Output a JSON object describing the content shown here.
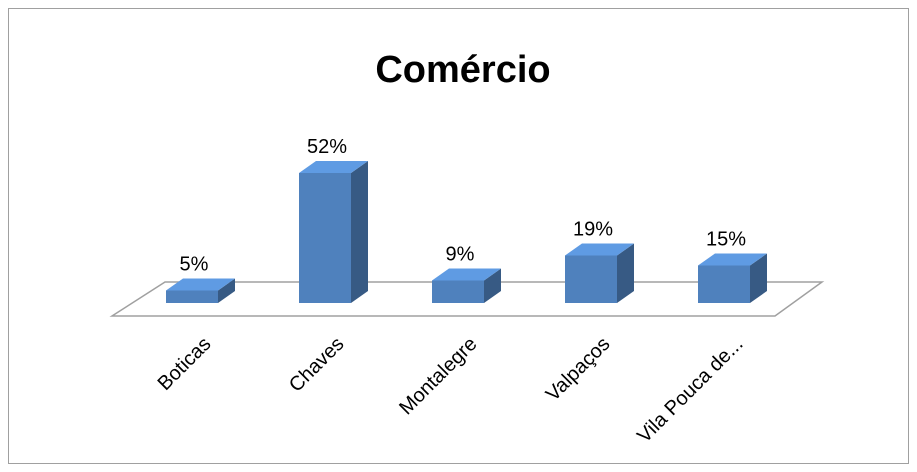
{
  "chart_data": {
    "type": "bar3d",
    "title": "Comércio",
    "categories": [
      "Boticas",
      "Chaves",
      "Montalegre",
      "Valpaços",
      "Vila Pouca de..."
    ],
    "values": [
      5,
      52,
      9,
      19,
      15
    ],
    "value_labels": [
      "5%",
      "52%",
      "9%",
      "19%",
      "15%"
    ],
    "color": "#4f81bd"
  }
}
